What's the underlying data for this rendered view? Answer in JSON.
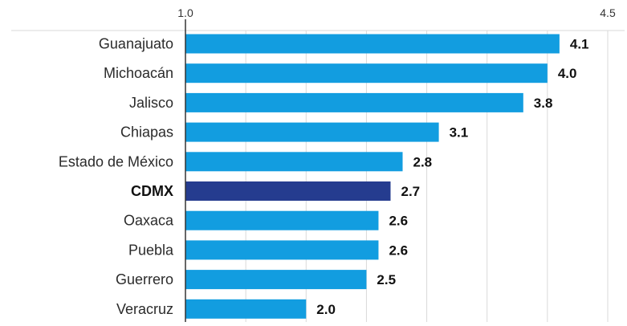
{
  "chart_data": {
    "type": "bar",
    "orientation": "horizontal",
    "categories": [
      "Guanajuato",
      "Michoacán",
      "Jalisco",
      "Chiapas",
      "Estado de México",
      "CDMX",
      "Oaxaca",
      "Puebla",
      "Guerrero",
      "Veracruz"
    ],
    "values": [
      4.1,
      4.0,
      3.8,
      3.1,
      2.8,
      2.7,
      2.6,
      2.6,
      2.5,
      2.0
    ],
    "value_labels": [
      "4.1",
      "4.0",
      "3.8",
      "3.1",
      "2.8",
      "2.7",
      "2.6",
      "2.6",
      "2.5",
      "2.0"
    ],
    "highlight": "CDMX",
    "xlim": [
      1.0,
      4.5
    ],
    "x_tick_labels": [
      "1.0",
      "4.5"
    ],
    "grid": true,
    "colors": {
      "bar": "#129de0",
      "highlight_bar": "#253c8f",
      "grid": "#d9d9d9",
      "axis": "#333333"
    }
  }
}
